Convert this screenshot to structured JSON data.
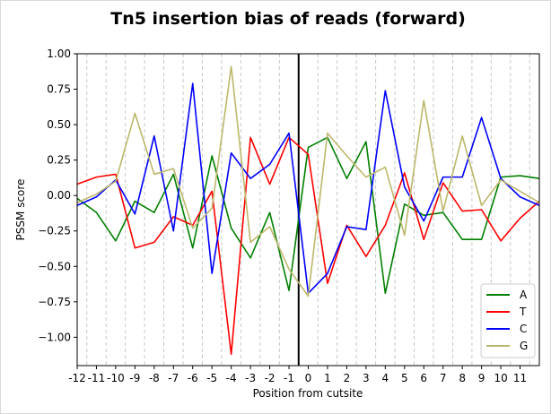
{
  "chart_data": {
    "type": "line",
    "title": "Tn5 insertion bias of reads (forward)",
    "xlabel": "Position from cutsite",
    "ylabel": "PSSM score",
    "xlim": [
      -12,
      12
    ],
    "ylim": [
      -1.2,
      1.0
    ],
    "x": [
      -12,
      -11,
      -10,
      -9,
      -8,
      -7,
      -6,
      -5,
      -4,
      -3,
      -2,
      -1,
      0,
      1,
      2,
      3,
      4,
      5,
      6,
      7,
      8,
      9,
      10,
      11,
      12
    ],
    "x_tick_values": [
      -12,
      -11,
      -10,
      -9,
      -8,
      -7,
      -6,
      -5,
      -4,
      -3,
      -2,
      -1,
      0,
      1,
      2,
      3,
      4,
      5,
      6,
      7,
      8,
      9,
      10,
      11
    ],
    "x_tick_labels": [
      "-12",
      "-11",
      "-10",
      "-9",
      "-8",
      "-7",
      "-6",
      "-5",
      "-4",
      "-3",
      "-2",
      "-1",
      "0",
      "1",
      "2",
      "3",
      "4",
      "5",
      "6",
      "7",
      "8",
      "9",
      "10",
      "11"
    ],
    "y_tick_values": [
      1.0,
      0.75,
      0.5,
      0.25,
      0.0,
      -0.25,
      -0.5,
      -0.75,
      -1.0
    ],
    "y_tick_labels": [
      "1.00",
      "0.75",
      "0.50",
      "0.25",
      "0.00",
      "−0.25",
      "−0.50",
      "−0.75",
      "−1.00"
    ],
    "grid": "vertical dashed",
    "cutsite_line_x": -0.5,
    "legend_position": "lower-right",
    "series": [
      {
        "name": "A",
        "color": "#008000",
        "values": [
          -0.02,
          -0.12,
          -0.32,
          -0.04,
          -0.12,
          0.15,
          -0.37,
          0.28,
          -0.23,
          -0.44,
          -0.12,
          -0.67,
          0.34,
          0.41,
          0.12,
          0.38,
          -0.69,
          -0.06,
          -0.14,
          -0.12,
          -0.31,
          -0.31,
          0.13,
          0.14,
          0.12
        ]
      },
      {
        "name": "T",
        "color": "#ff0000",
        "values": [
          0.08,
          0.13,
          0.15,
          -0.37,
          -0.33,
          -0.15,
          -0.21,
          0.03,
          -1.12,
          0.41,
          0.08,
          0.41,
          0.29,
          -0.62,
          -0.21,
          -0.43,
          -0.21,
          0.16,
          -0.31,
          0.09,
          -0.11,
          -0.1,
          -0.32,
          -0.16,
          -0.04
        ]
      },
      {
        "name": "C",
        "color": "#0000ff",
        "values": [
          -0.07,
          -0.01,
          0.11,
          -0.13,
          0.42,
          -0.25,
          0.79,
          -0.55,
          0.3,
          0.12,
          0.22,
          0.44,
          -0.69,
          -0.55,
          -0.22,
          -0.24,
          0.74,
          0.06,
          -0.18,
          0.13,
          0.13,
          0.55,
          0.12,
          -0.01,
          -0.07
        ]
      },
      {
        "name": "G",
        "color": "#bdb76b",
        "values": [
          -0.05,
          0.01,
          0.1,
          0.58,
          0.15,
          0.19,
          -0.23,
          -0.09,
          0.91,
          -0.33,
          -0.22,
          -0.52,
          -0.71,
          0.44,
          0.28,
          0.13,
          0.2,
          -0.28,
          0.67,
          -0.11,
          0.42,
          -0.07,
          0.11,
          0.03,
          -0.05
        ]
      }
    ]
  }
}
